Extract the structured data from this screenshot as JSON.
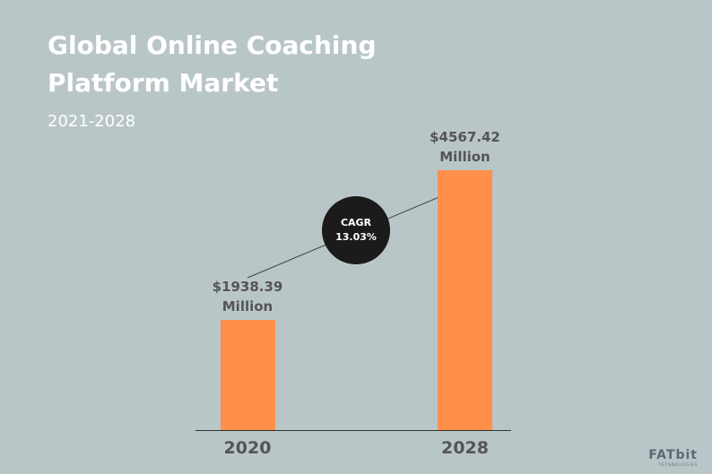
{
  "chart_data": {
    "type": "bar",
    "title": "Global Online Coaching Platform Market",
    "subtitle": "2021-2028",
    "categories": [
      "2020",
      "2028"
    ],
    "values": [
      1938.39,
      4567.42
    ],
    "value_labels": [
      "$1938.39 Million",
      "$4567.42 Million"
    ],
    "color": "#ff8f4a",
    "annotations": [
      "CAGR",
      "13.03%"
    ],
    "logo": "FATbit",
    "logo_subtitle": "TECHNOLOGIES"
  }
}
